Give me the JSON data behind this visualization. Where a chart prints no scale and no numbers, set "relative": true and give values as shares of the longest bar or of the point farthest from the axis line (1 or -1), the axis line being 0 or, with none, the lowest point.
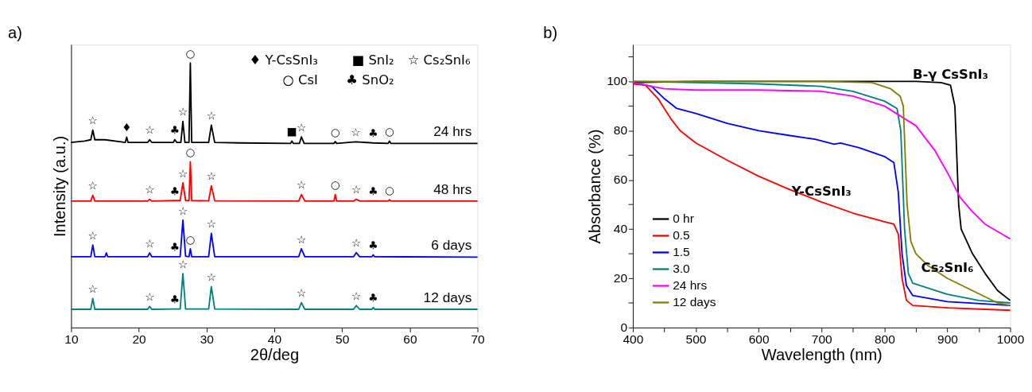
{
  "chart_data": [
    {
      "type": "line",
      "title": "a)",
      "xlabel": "2θ/deg",
      "ylabel": "Intensity (a.u.)",
      "relative": true,
      "tick_labels": "x",
      "grid": false,
      "xlim": [
        10,
        70
      ],
      "xticks": [
        10,
        20,
        30,
        40,
        50,
        60,
        70
      ],
      "series": [
        {
          "name": "24 hrs",
          "color": "#000000",
          "x": [
            10,
            12,
            12.9,
            13.2,
            13.5,
            15,
            18.0,
            18.2,
            18.4,
            21.3,
            21.6,
            21.9,
            25.1,
            25.3,
            25.6,
            26.2,
            26.5,
            26.8,
            27.4,
            27.6,
            27.8,
            30.3,
            30.7,
            31.2,
            35,
            42.4,
            42.6,
            42.8,
            43.7,
            44,
            44.4,
            48.8,
            49,
            49.2,
            52,
            54.6,
            56.8,
            57,
            57.2,
            62,
            70
          ],
          "values": [
            0.7,
            0.705,
            0.71,
            0.746,
            0.71,
            0.71,
            0.7,
            0.72,
            0.7,
            0.7,
            0.71,
            0.7,
            0.7,
            0.71,
            0.7,
            0.7,
            0.779,
            0.7,
            0.7,
            1.0,
            0.7,
            0.7,
            0.765,
            0.7,
            0.698,
            0.696,
            0.705,
            0.696,
            0.696,
            0.721,
            0.696,
            0.696,
            0.703,
            0.696,
            0.702,
            0.698,
            0.696,
            0.705,
            0.696,
            0.696,
            0.696
          ]
        },
        {
          "name": "48 hrs",
          "color": "#ff0000",
          "x": [
            10,
            12.9,
            13.2,
            13.5,
            21.3,
            21.6,
            21.9,
            25.3,
            26.1,
            26.5,
            26.9,
            27.4,
            27.6,
            27.8,
            30.3,
            30.7,
            31.2,
            43.6,
            44,
            44.5,
            48.8,
            49,
            49.2,
            51.7,
            52.1,
            52.6,
            54.6,
            56.8,
            57,
            57.2,
            70
          ],
          "values": [
            0.478,
            0.478,
            0.5,
            0.478,
            0.478,
            0.485,
            0.478,
            0.48,
            0.48,
            0.547,
            0.48,
            0.48,
            0.627,
            0.48,
            0.479,
            0.536,
            0.479,
            0.478,
            0.503,
            0.478,
            0.478,
            0.503,
            0.478,
            0.478,
            0.485,
            0.478,
            0.479,
            0.478,
            0.483,
            0.478,
            0.478
          ]
        },
        {
          "name": "6 days",
          "color": "#0000ff",
          "x": [
            10,
            12.9,
            13.2,
            13.5,
            15,
            15.2,
            15.4,
            21.3,
            21.6,
            21.9,
            25.3,
            26.1,
            26.5,
            26.9,
            27.4,
            27.6,
            27.8,
            30.3,
            30.7,
            31.2,
            43.6,
            44,
            44.5,
            51.7,
            52.1,
            52.6,
            54.4,
            54.6,
            54.8,
            70
          ],
          "values": [
            0.268,
            0.268,
            0.312,
            0.268,
            0.268,
            0.282,
            0.268,
            0.268,
            0.282,
            0.268,
            0.268,
            0.268,
            0.406,
            0.27,
            0.268,
            0.298,
            0.268,
            0.268,
            0.356,
            0.268,
            0.268,
            0.298,
            0.268,
            0.268,
            0.283,
            0.268,
            0.268,
            0.275,
            0.268,
            0.266
          ]
        },
        {
          "name": "12 days",
          "color": "#008080",
          "x": [
            10,
            12.9,
            13.2,
            13.5,
            21.3,
            21.6,
            21.9,
            25.3,
            26.1,
            26.5,
            26.9,
            30.3,
            30.7,
            31.2,
            43.6,
            44,
            44.5,
            51.7,
            52.1,
            52.6,
            54.4,
            54.6,
            54.8,
            70
          ],
          "values": [
            0.069,
            0.069,
            0.11,
            0.069,
            0.069,
            0.08,
            0.069,
            0.07,
            0.07,
            0.204,
            0.07,
            0.07,
            0.155,
            0.07,
            0.069,
            0.094,
            0.069,
            0.069,
            0.083,
            0.069,
            0.069,
            0.076,
            0.069,
            0.069
          ]
        }
      ],
      "annotations": [
        "♦ Y-CsSnI₃",
        "■ SnI₂",
        "☆ Cs₂SnI₆",
        "○ CsI",
        "♣ SnO₂",
        {
          "text": "☆",
          "x": 13.2,
          "y": 0.746
        },
        {
          "text": "♦",
          "x": 18.2,
          "y": 0.72
        },
        {
          "text": "☆",
          "x": 21.6,
          "y": 0.71
        },
        {
          "text": "♣",
          "x": 25.3,
          "y": 0.71
        },
        {
          "text": "☆",
          "x": 26.5,
          "y": 0.779
        },
        {
          "text": "○",
          "x": 27.6,
          "y": 1.0
        },
        {
          "text": "☆",
          "x": 30.7,
          "y": 0.765
        },
        {
          "text": "■",
          "x": 42.6,
          "y": 0.705
        },
        {
          "text": "☆",
          "x": 44,
          "y": 0.721
        },
        {
          "text": "○",
          "x": 49,
          "y": 0.703
        },
        {
          "text": "☆",
          "x": 52,
          "y": 0.702
        },
        {
          "text": "♣",
          "x": 54.6,
          "y": 0.698
        },
        {
          "text": "○",
          "x": 57,
          "y": 0.705
        },
        {
          "text": "☆",
          "x": 13.2,
          "y": 0.5
        },
        {
          "text": "☆",
          "x": 21.6,
          "y": 0.485
        },
        {
          "text": "♣",
          "x": 25.3,
          "y": 0.48
        },
        {
          "text": "☆",
          "x": 26.5,
          "y": 0.547
        },
        {
          "text": "○",
          "x": 27.6,
          "y": 0.627
        },
        {
          "text": "☆",
          "x": 30.7,
          "y": 0.536
        },
        {
          "text": "☆",
          "x": 44,
          "y": 0.503
        },
        {
          "text": "○",
          "x": 49,
          "y": 0.503
        },
        {
          "text": "☆",
          "x": 52.1,
          "y": 0.485
        },
        {
          "text": "♣",
          "x": 54.6,
          "y": 0.479
        },
        {
          "text": "○",
          "x": 57,
          "y": 0.483
        },
        {
          "text": "☆",
          "x": 13.2,
          "y": 0.312
        },
        {
          "text": "☆",
          "x": 21.6,
          "y": 0.282
        },
        {
          "text": "♣",
          "x": 25.3,
          "y": 0.268
        },
        {
          "text": "☆",
          "x": 26.5,
          "y": 0.406
        },
        {
          "text": "○",
          "x": 27.6,
          "y": 0.298
        },
        {
          "text": "☆",
          "x": 30.7,
          "y": 0.356
        },
        {
          "text": "☆",
          "x": 44,
          "y": 0.298
        },
        {
          "text": "☆",
          "x": 52.1,
          "y": 0.283
        },
        {
          "text": "♣",
          "x": 54.6,
          "y": 0.275
        },
        {
          "text": "☆",
          "x": 13.2,
          "y": 0.11
        },
        {
          "text": "☆",
          "x": 21.6,
          "y": 0.08
        },
        {
          "text": "♣",
          "x": 25.3,
          "y": 0.07
        },
        {
          "text": "☆",
          "x": 26.5,
          "y": 0.204
        },
        {
          "text": "☆",
          "x": 30.7,
          "y": 0.155
        },
        {
          "text": "☆",
          "x": 44,
          "y": 0.094
        },
        {
          "text": "☆",
          "x": 52.1,
          "y": 0.083
        },
        {
          "text": "♣",
          "x": 54.6,
          "y": 0.076
        }
      ]
    },
    {
      "type": "line",
      "title": "b)",
      "xlabel": "Wavelength (nm)",
      "ylabel": "Absorbance (%)",
      "grid": false,
      "legend": "bottom left",
      "xlim": [
        400,
        1000
      ],
      "xticks": [
        400,
        {
          "value": 450,
          "label": null
        },
        500,
        {
          "value": 550,
          "label": null
        },
        600,
        {
          "value": 650,
          "label": null
        },
        700,
        {
          "value": 750,
          "label": null
        },
        800,
        {
          "value": 850,
          "label": null
        },
        900,
        {
          "value": 950,
          "label": null
        },
        1000
      ],
      "ylim": [
        0,
        115
      ],
      "yticks": [
        0,
        {
          "value": 10,
          "label": null
        },
        20,
        {
          "value": 30,
          "label": null
        },
        40,
        {
          "value": 50,
          "label": null
        },
        60,
        {
          "value": 70,
          "label": null
        },
        80,
        {
          "value": 90,
          "label": null
        },
        100,
        {
          "value": 110,
          "label": null
        }
      ],
      "series": [
        {
          "name": "0 hr",
          "color": "#000000",
          "x": [
            400,
            500,
            700,
            850,
            890,
            905,
            912,
            918,
            922,
            940,
            960,
            980,
            1000
          ],
          "values": [
            99.5,
            100,
            100,
            100,
            99.5,
            98.5,
            90,
            50,
            40,
            30,
            22,
            15,
            11
          ]
        },
        {
          "name": "0.5",
          "color": "#ff0000",
          "x": [
            400,
            420,
            440,
            460,
            475,
            500,
            550,
            600,
            650,
            700,
            750,
            800,
            815,
            822,
            828,
            835,
            845,
            900,
            1000
          ],
          "values": [
            99,
            98.5,
            93,
            85,
            80,
            75,
            68,
            61.5,
            56,
            51,
            46.5,
            43,
            42,
            38,
            20,
            11,
            9,
            8,
            7
          ]
        },
        {
          "name": "1.5",
          "color": "#0000ff",
          "x": [
            400,
            430,
            450,
            470,
            500,
            550,
            600,
            650,
            690,
            720,
            730,
            760,
            800,
            815,
            822,
            828,
            835,
            845,
            900,
            1000
          ],
          "values": [
            99.5,
            98,
            93,
            89,
            87,
            83,
            80,
            78,
            76.5,
            74.5,
            75,
            73,
            69.5,
            67,
            55,
            30,
            17,
            13,
            10.5,
            9
          ]
        },
        {
          "name": "3.0",
          "color": "#008080",
          "x": [
            400,
            500,
            600,
            700,
            750,
            800,
            820,
            826,
            832,
            838,
            845,
            900,
            950,
            1000
          ],
          "values": [
            100,
            99.5,
            99,
            98,
            96,
            92,
            89,
            80,
            40,
            22,
            18,
            13.5,
            11,
            10
          ]
        },
        {
          "name": "24 hrs",
          "color": "#ff00ff",
          "x": [
            400,
            430,
            450,
            500,
            600,
            700,
            750,
            800,
            850,
            880,
            900,
            920,
            940,
            960,
            1000
          ],
          "values": [
            99.5,
            98,
            97,
            96.5,
            96.5,
            96,
            94,
            90,
            82,
            72,
            63,
            53,
            47,
            42,
            36
          ]
        },
        {
          "name": "12 days",
          "color": "#808000",
          "x": [
            400,
            700,
            780,
            810,
            825,
            830,
            836,
            842,
            850,
            870,
            900,
            940,
            980,
            1000
          ],
          "values": [
            100,
            100,
            99.5,
            97,
            94,
            90,
            50,
            35,
            30,
            25,
            20,
            15,
            10,
            9
          ]
        }
      ],
      "annotations": [
        {
          "text": "B-γ CsSnI₃",
          "x": 905,
          "y": 98.5
        },
        {
          "text": "Y-CsSnI₃",
          "x": 700,
          "y": 51
        },
        {
          "text": "Cs₂SnI₆",
          "x": 900,
          "y": 20
        }
      ]
    }
  ]
}
